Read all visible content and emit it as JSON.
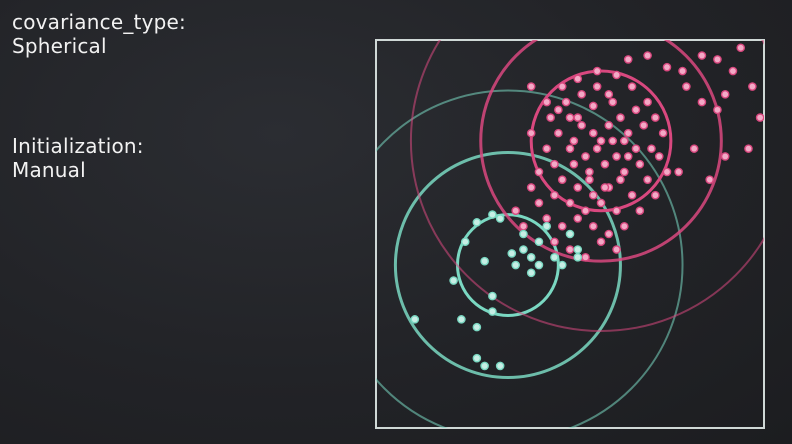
{
  "labels": {
    "covariance_label": "covariance_type:",
    "covariance_value": "Spherical",
    "init_label": "Initialization:",
    "init_value": "Manual"
  },
  "colors": {
    "frame": "#cfd8d6",
    "pink_cluster": "#d9487f",
    "pink_point_fill": "#f3a9c6",
    "teal_cluster": "#7ad8c2",
    "teal_point_fill": "#c7eee5"
  },
  "chart_data": {
    "type": "scatter",
    "title": "",
    "xlabel": "",
    "ylabel": "",
    "xlim": [
      0,
      100
    ],
    "ylim": [
      0,
      100
    ],
    "grid": false,
    "series": [
      {
        "cluster": "pink",
        "points": [
          [
            40,
            76
          ],
          [
            44,
            84
          ],
          [
            47,
            82
          ],
          [
            50,
            80
          ],
          [
            53,
            78
          ],
          [
            56,
            83
          ],
          [
            60,
            86
          ],
          [
            63,
            80
          ],
          [
            65,
            76
          ],
          [
            67,
            72
          ],
          [
            62,
            70
          ],
          [
            58,
            74
          ],
          [
            54,
            70
          ],
          [
            50,
            72
          ],
          [
            46,
            68
          ],
          [
            48,
            64
          ],
          [
            52,
            62
          ],
          [
            56,
            60
          ],
          [
            60,
            62
          ],
          [
            64,
            66
          ],
          [
            68,
            68
          ],
          [
            70,
            64
          ],
          [
            66,
            60
          ],
          [
            62,
            56
          ],
          [
            58,
            58
          ],
          [
            54,
            56
          ],
          [
            50,
            58
          ],
          [
            46,
            60
          ],
          [
            44,
            72
          ],
          [
            42,
            66
          ],
          [
            48,
            88
          ],
          [
            52,
            90
          ],
          [
            57,
            92
          ],
          [
            62,
            91
          ],
          [
            66,
            88
          ],
          [
            70,
            84
          ],
          [
            72,
            80
          ],
          [
            74,
            76
          ],
          [
            71,
            72
          ],
          [
            67,
            82
          ],
          [
            59,
            68
          ],
          [
            55,
            66
          ],
          [
            51,
            68
          ],
          [
            57,
            72
          ],
          [
            61,
            74
          ],
          [
            65,
            70
          ],
          [
            63,
            64
          ],
          [
            59,
            62
          ],
          [
            55,
            64
          ],
          [
            51,
            74
          ],
          [
            47,
            76
          ],
          [
            45,
            80
          ],
          [
            49,
            84
          ],
          [
            53,
            86
          ],
          [
            57,
            88
          ],
          [
            61,
            84
          ],
          [
            69,
            78
          ],
          [
            73,
            70
          ],
          [
            75,
            66
          ],
          [
            72,
            60
          ],
          [
            68,
            56
          ],
          [
            64,
            52
          ],
          [
            60,
            50
          ],
          [
            56,
            52
          ],
          [
            52,
            54
          ],
          [
            48,
            52
          ],
          [
            44,
            54
          ],
          [
            42,
            58
          ],
          [
            40,
            62
          ],
          [
            46,
            48
          ],
          [
            50,
            46
          ],
          [
            54,
            44
          ],
          [
            58,
            48
          ],
          [
            62,
            46
          ],
          [
            38,
            52
          ],
          [
            36,
            56
          ],
          [
            56,
            76
          ],
          [
            60,
            78
          ],
          [
            64,
            74
          ],
          [
            52,
            80
          ],
          [
            80,
            88
          ],
          [
            84,
            84
          ],
          [
            88,
            82
          ],
          [
            90,
            86
          ],
          [
            92,
            92
          ],
          [
            88,
            95
          ],
          [
            94,
            98
          ],
          [
            97,
            88
          ],
          [
            99,
            80
          ],
          [
            96,
            72
          ],
          [
            82,
            72
          ],
          [
            78,
            66
          ],
          [
            86,
            64
          ],
          [
            90,
            70
          ],
          [
            84,
            96
          ],
          [
            79,
            92
          ],
          [
            70,
            96
          ],
          [
            65,
            95
          ],
          [
            75,
            93
          ],
          [
            40,
            88
          ]
        ]
      },
      {
        "cluster": "teal",
        "points": [
          [
            26,
            53
          ],
          [
            30,
            55
          ],
          [
            32,
            54
          ],
          [
            23,
            48
          ],
          [
            35,
            45
          ],
          [
            38,
            46
          ],
          [
            40,
            44
          ],
          [
            36,
            42
          ],
          [
            42,
            42
          ],
          [
            38,
            50
          ],
          [
            28,
            43
          ],
          [
            20,
            38
          ],
          [
            30,
            30
          ],
          [
            22,
            28
          ],
          [
            26,
            26
          ],
          [
            10,
            28
          ],
          [
            26,
            18
          ],
          [
            32,
            16
          ],
          [
            28,
            16
          ],
          [
            46,
            44
          ],
          [
            48,
            42
          ],
          [
            52,
            46
          ],
          [
            40,
            40
          ],
          [
            44,
            52
          ],
          [
            50,
            50
          ],
          [
            52,
            44
          ],
          [
            30,
            34
          ],
          [
            42,
            48
          ]
        ]
      }
    ],
    "ellipses": [
      {
        "cluster": "pink",
        "cx": 58,
        "cy": 74,
        "r": 18,
        "level": "inner"
      },
      {
        "cluster": "pink",
        "cx": 58,
        "cy": 74,
        "r": 31,
        "level": "middle"
      },
      {
        "cluster": "pink",
        "cx": 58,
        "cy": 74,
        "r": 49,
        "level": "outer"
      },
      {
        "cluster": "teal",
        "cx": 34,
        "cy": 42,
        "r": 13,
        "level": "inner"
      },
      {
        "cluster": "teal",
        "cx": 34,
        "cy": 42,
        "r": 29,
        "level": "middle"
      },
      {
        "cluster": "teal",
        "cx": 34,
        "cy": 42,
        "r": 45,
        "level": "outer"
      }
    ]
  }
}
